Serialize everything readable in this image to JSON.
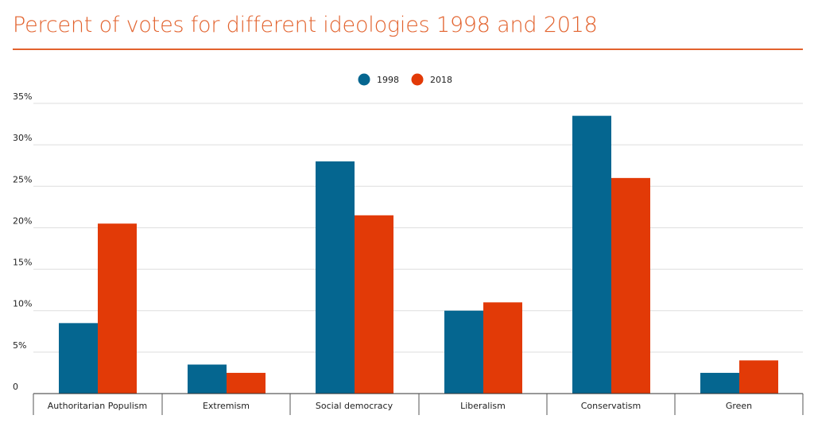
{
  "accent_color": "#e2622d",
  "chart_data": {
    "type": "bar",
    "title": "Percent of votes for different ideologies 1998 and 2018",
    "xlabel": "",
    "ylabel": "",
    "categories": [
      "Authoritarian Populism",
      "Extremism",
      "Social democracy",
      "Liberalism",
      "Conservatism",
      "Green"
    ],
    "series": [
      {
        "name": "1998",
        "color": "#056690",
        "values": [
          8.5,
          3.5,
          28,
          10,
          33.5,
          2.5
        ]
      },
      {
        "name": "2018",
        "color": "#e23a07",
        "values": [
          20.5,
          2.5,
          21.5,
          11,
          26,
          4
        ]
      }
    ],
    "ylim": [
      0,
      35
    ],
    "yticks": [
      0,
      5,
      10,
      15,
      20,
      25,
      30,
      35
    ],
    "ytick_labels": [
      "0",
      "5%",
      "10%",
      "15%",
      "20%",
      "25%",
      "30%",
      "35%"
    ],
    "grid": true,
    "legend_position": "top-center"
  }
}
